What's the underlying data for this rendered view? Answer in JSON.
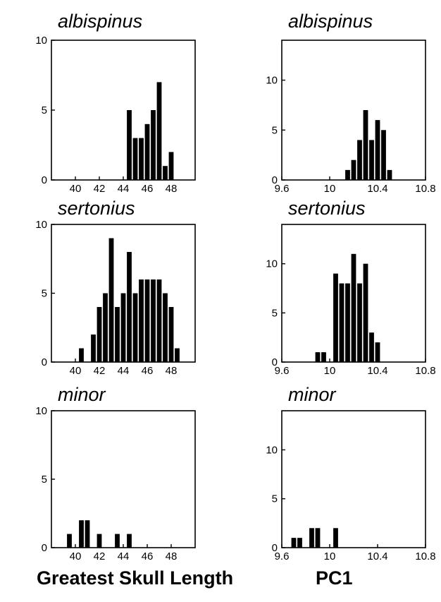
{
  "chart_data": [
    {
      "type": "bar",
      "title": "albispinus",
      "xlabel": "",
      "ylabel": "",
      "xlim": [
        38,
        50
      ],
      "ylim": [
        0,
        10
      ],
      "xticks": [
        40,
        42,
        44,
        46,
        48
      ],
      "xtick_labels": [
        "40",
        "42",
        "44",
        "46",
        "48"
      ],
      "yticks": [
        0,
        5,
        10
      ],
      "ytick_labels": [
        "0",
        "5",
        "10"
      ],
      "bin_width": 0.5,
      "x": [
        44.5,
        45,
        45.5,
        46,
        46.5,
        47,
        47.5,
        48,
        48.5
      ],
      "values": [
        5,
        3,
        3,
        4,
        5,
        7,
        1,
        2,
        0
      ]
    },
    {
      "type": "bar",
      "title": "albispinus",
      "xlabel": "",
      "ylabel": "",
      "xlim": [
        9.6,
        10.8
      ],
      "ylim": [
        0,
        14
      ],
      "xticks": [
        9.6,
        10,
        10.4,
        10.8
      ],
      "xtick_labels": [
        "9.6",
        "10",
        "10.4",
        "10.8"
      ],
      "yticks": [
        0,
        5,
        10
      ],
      "ytick_labels": [
        "0",
        "5",
        "10"
      ],
      "bin_width": 0.05,
      "x": [
        10.15,
        10.2,
        10.25,
        10.3,
        10.35,
        10.4,
        10.45,
        10.5,
        10.55
      ],
      "values": [
        1,
        2,
        4,
        7,
        4,
        6,
        5,
        1,
        0
      ]
    },
    {
      "type": "bar",
      "title": "sertonius",
      "xlabel": "",
      "ylabel": "",
      "xlim": [
        38,
        50
      ],
      "ylim": [
        0,
        10
      ],
      "xticks": [
        40,
        42,
        44,
        46,
        48
      ],
      "xtick_labels": [
        "40",
        "42",
        "44",
        "46",
        "48"
      ],
      "yticks": [
        0,
        5,
        10
      ],
      "ytick_labels": [
        "0",
        "5",
        "10"
      ],
      "bin_width": 0.5,
      "x": [
        40.5,
        41.5,
        42,
        42.5,
        43,
        43.5,
        44,
        44.5,
        45,
        45.5,
        46,
        46.5,
        47,
        47.5,
        48,
        48.5
      ],
      "values": [
        1,
        2,
        4,
        5,
        9,
        4,
        5,
        8,
        5,
        6,
        6,
        6,
        6,
        5,
        4,
        1
      ]
    },
    {
      "type": "bar",
      "title": "sertonius",
      "xlabel": "",
      "ylabel": "",
      "xlim": [
        9.6,
        10.8
      ],
      "ylim": [
        0,
        14
      ],
      "xticks": [
        9.6,
        10,
        10.4,
        10.8
      ],
      "xtick_labels": [
        "9.6",
        "10",
        "10.4",
        "10.8"
      ],
      "yticks": [
        0,
        5,
        10
      ],
      "ytick_labels": [
        "0",
        "5",
        "10"
      ],
      "bin_width": 0.05,
      "x": [
        9.9,
        9.95,
        10.05,
        10.1,
        10.15,
        10.2,
        10.25,
        10.3,
        10.35,
        10.4,
        10.45
      ],
      "values": [
        1,
        1,
        9,
        8,
        8,
        11,
        8,
        10,
        3,
        2,
        0
      ]
    },
    {
      "type": "bar",
      "title": "minor",
      "xlabel": "Greatest Skull Length",
      "ylabel": "",
      "xlim": [
        38,
        50
      ],
      "ylim": [
        0,
        10
      ],
      "xticks": [
        40,
        42,
        44,
        46,
        48
      ],
      "xtick_labels": [
        "40",
        "42",
        "44",
        "46",
        "48"
      ],
      "yticks": [
        0,
        5,
        10
      ],
      "ytick_labels": [
        "0",
        "5",
        "10"
      ],
      "bin_width": 0.5,
      "x": [
        39.5,
        40.5,
        41,
        42,
        43.5,
        44.5
      ],
      "values": [
        1,
        2,
        2,
        1,
        1,
        1
      ]
    },
    {
      "type": "bar",
      "title": "minor",
      "xlabel": "PC1",
      "ylabel": "",
      "xlim": [
        9.6,
        10.8
      ],
      "ylim": [
        0,
        14
      ],
      "xticks": [
        9.6,
        10,
        10.4,
        10.8
      ],
      "xtick_labels": [
        "9.6",
        "10",
        "10.4",
        "10.8"
      ],
      "yticks": [
        0,
        5,
        10
      ],
      "ytick_labels": [
        "0",
        "5",
        "10"
      ],
      "bin_width": 0.05,
      "x": [
        9.7,
        9.75,
        9.85,
        9.9,
        10.05
      ],
      "values": [
        1,
        1,
        2,
        2,
        2
      ]
    }
  ]
}
